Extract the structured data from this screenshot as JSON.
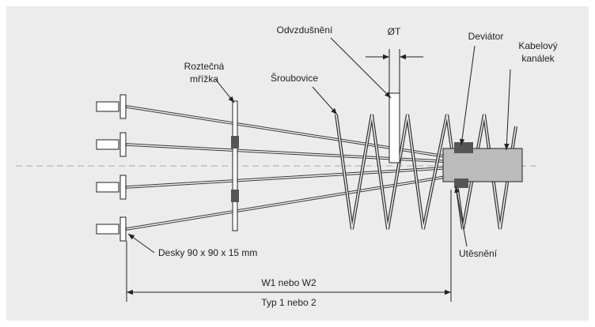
{
  "labels": [
    {
      "lines": [
        "Roztečná",
        "mřížka"
      ]
    },
    {
      "lines": [
        "Odvzdušnění"
      ]
    },
    {
      "lines": [
        "ØT"
      ]
    },
    {
      "lines": [
        "Deviátor"
      ]
    },
    {
      "lines": [
        "Kabelový",
        "kanálek"
      ]
    },
    {
      "lines": [
        "Šroubovice"
      ]
    },
    {
      "lines": [
        "Desky 90 x 90 x 15 mm"
      ]
    },
    {
      "lines": [
        "Utěsnění"
      ]
    },
    {
      "lines": [
        "W1 nebo W2"
      ]
    },
    {
      "lines": [
        "Typ 1 nebo 2"
      ]
    }
  ]
}
